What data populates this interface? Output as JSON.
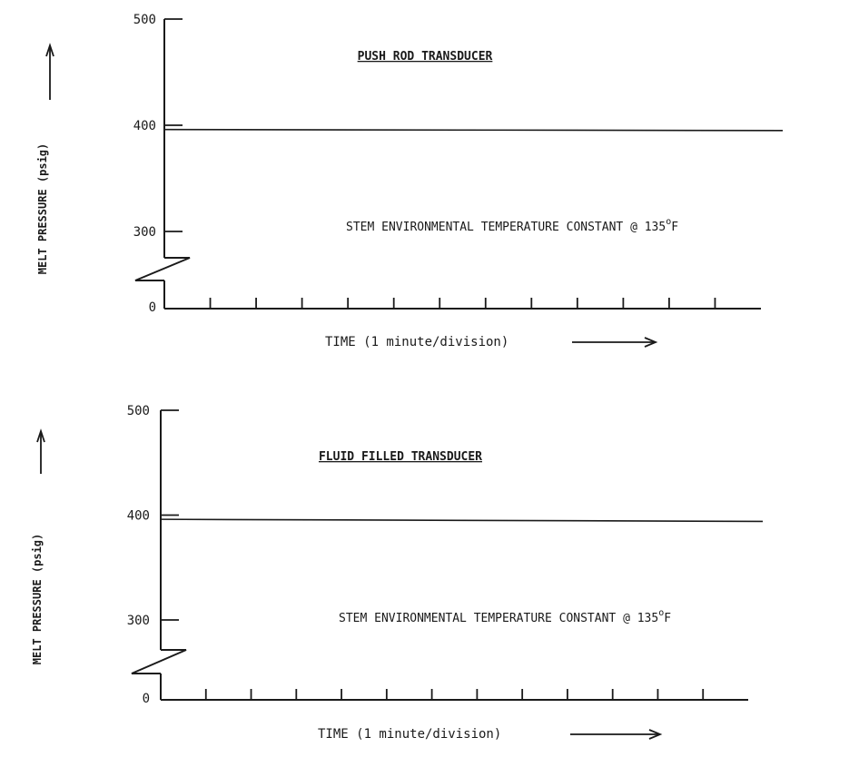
{
  "chart_data": [
    {
      "type": "line",
      "title": "PUSH ROD TRANSDUCER",
      "xlabel": "TIME (1 minute/division)",
      "ylabel": "MELT PRESSURE (psig)",
      "ylim": [
        0,
        500
      ],
      "y_axis_break": [
        0,
        300
      ],
      "y_ticks": [
        {
          "value": 500,
          "label": "500"
        },
        {
          "value": 400,
          "label": "400"
        },
        {
          "value": 300,
          "label": "300"
        },
        {
          "value": 0,
          "label": "0"
        }
      ],
      "x_divisions": 13,
      "annotation": {
        "text": "STEM ENVIRONMENTAL TEMPERATURE CONSTANT @ 135",
        "unit": "o",
        "suffix": "F"
      },
      "series": [
        {
          "x": [
            0,
            13
          ],
          "values": [
            396,
            395
          ]
        }
      ],
      "grid": false
    },
    {
      "type": "line",
      "title": "FLUID FILLED TRANSDUCER",
      "xlabel": "TIME (1 minute/division)",
      "ylabel": "MELT PRESSURE (psig)",
      "ylim": [
        0,
        500
      ],
      "y_axis_break": [
        0,
        300
      ],
      "y_ticks": [
        {
          "value": 500,
          "label": "500"
        },
        {
          "value": 400,
          "label": "400"
        },
        {
          "value": 300,
          "label": "300"
        },
        {
          "value": 0,
          "label": "0"
        }
      ],
      "x_divisions": 13,
      "annotation": {
        "text": "STEM ENVIRONMENTAL TEMPERATURE CONSTANT @ 135",
        "unit": "o",
        "suffix": "F"
      },
      "series": [
        {
          "x": [
            0,
            13
          ],
          "values": [
            396,
            394
          ]
        }
      ],
      "grid": false
    }
  ]
}
